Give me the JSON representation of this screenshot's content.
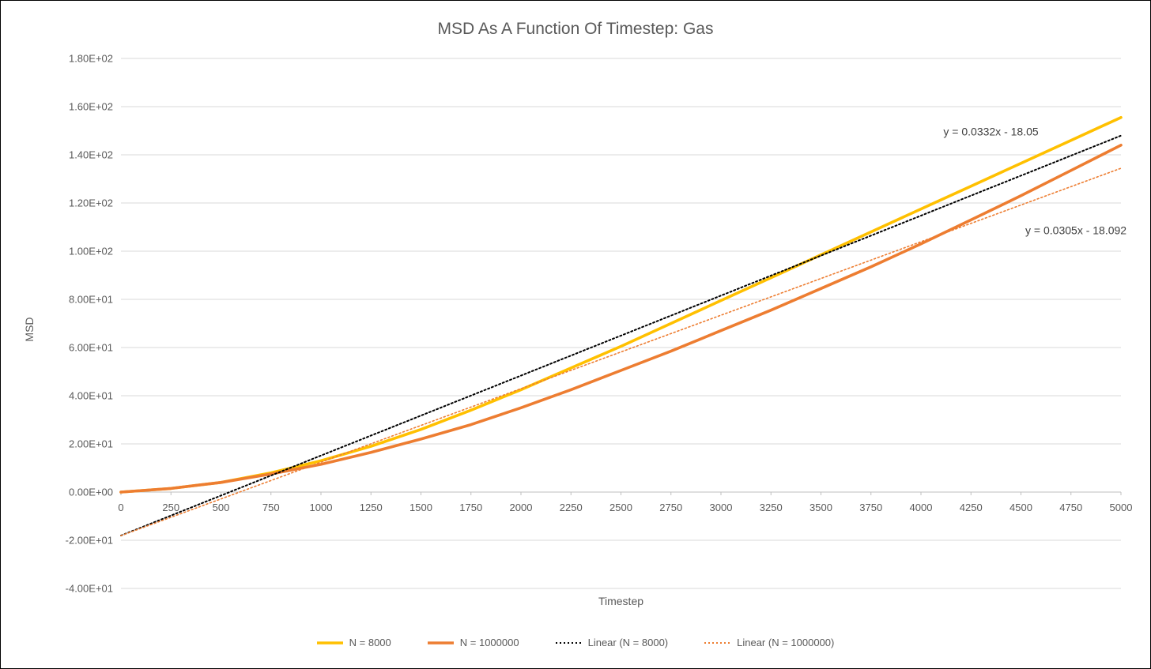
{
  "title": "MSD As A Function Of Timestep: Gas",
  "axes": {
    "x_label": "Timestep",
    "y_label": "MSD",
    "x_range": [
      0,
      5000
    ],
    "y_range": [
      -40,
      180
    ],
    "x_ticks": [
      0,
      250,
      500,
      750,
      1000,
      1250,
      1500,
      1750,
      2000,
      2250,
      2500,
      2750,
      3000,
      3250,
      3500,
      3750,
      4000,
      4250,
      4500,
      4750,
      5000
    ],
    "x_tick_labels": [
      "0",
      "250",
      "500",
      "750",
      "1000",
      "1250",
      "1500",
      "1750",
      "2000",
      "2250",
      "2500",
      "2750",
      "3000",
      "3250",
      "3500",
      "3750",
      "4000",
      "4250",
      "4500",
      "4750",
      "5000"
    ],
    "y_ticks": [
      -40,
      -20,
      0,
      20,
      40,
      60,
      80,
      100,
      120,
      140,
      160,
      180
    ],
    "y_tick_labels": [
      "-4.00E+01",
      "-2.00E+01",
      "0.00E+00",
      "2.00E+01",
      "4.00E+01",
      "6.00E+01",
      "8.00E+01",
      "1.00E+02",
      "1.20E+02",
      "1.40E+02",
      "1.60E+02",
      "1.80E+02"
    ],
    "gridlines": "horizontal",
    "grid_color": "#D9D9D9",
    "axis_line_color": "#BFBFBF"
  },
  "chart_data": {
    "type": "line",
    "x": [
      0,
      250,
      500,
      750,
      1000,
      1250,
      1500,
      1750,
      2000,
      2250,
      2500,
      2750,
      3000,
      3250,
      3500,
      3750,
      4000,
      4250,
      4500,
      4750,
      5000
    ],
    "series": [
      {
        "name": "N = 8000",
        "color": "#FFC000",
        "style": "solid",
        "values": [
          0,
          1.5,
          4,
          8,
          13,
          19,
          26,
          34,
          42.5,
          51.5,
          60.5,
          70,
          79.5,
          89,
          98.5,
          108,
          117.5,
          127,
          136.5,
          146,
          155.5
        ]
      },
      {
        "name": "N = 1000000",
        "color": "#ED7D31",
        "style": "solid",
        "values": [
          0,
          1.5,
          4,
          7.5,
          11.5,
          16.5,
          22,
          28,
          35,
          42.5,
          50.5,
          58.5,
          67,
          75.5,
          84.5,
          93.5,
          103,
          113,
          123,
          133.5,
          144
        ]
      },
      {
        "name": "Linear (N = 8000)",
        "color": "#000000",
        "style": "dotted",
        "trend": {
          "slope": 0.0332,
          "intercept": -18.05
        },
        "equation": "y = 0.0332x - 18.05"
      },
      {
        "name": "Linear (N = 1000000)",
        "color": "#ED7D31",
        "style": "dotted",
        "trend": {
          "slope": 0.0305,
          "intercept": -18.092
        },
        "equation": "y = 0.0305x - 18.092"
      }
    ],
    "annotations": [
      {
        "text": "y = 0.0332x - 18.05",
        "x": 4350,
        "y": 148
      },
      {
        "text": "y = 0.0305x - 18.092",
        "x": 4775,
        "y": 107
      }
    ],
    "legend_position": "bottom"
  }
}
